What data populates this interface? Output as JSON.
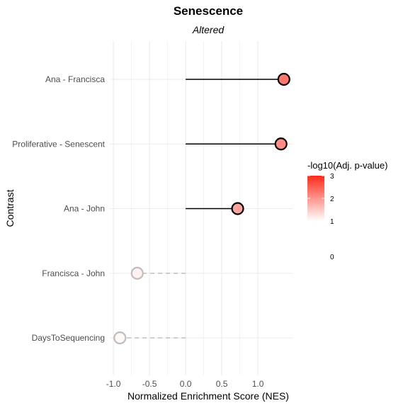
{
  "chart_data": {
    "type": "lollipop",
    "title": "Senescence",
    "subtitle": "Altered",
    "xlabel": "Normalized Enrichment Score (NES)",
    "ylabel": "Contrast",
    "xlim": [
      -1.05,
      1.48
    ],
    "x_ticks": [
      -1.0,
      -0.5,
      0.0,
      0.5,
      1.0
    ],
    "x_tick_labels": [
      "-1.0",
      "-0.5",
      "0.0",
      "0.5",
      "1.0"
    ],
    "grid": true,
    "categories": [
      "Ana - Francisca",
      "Proliferative - Senescent",
      "Ana - John",
      "Francisca - John",
      "DaysToSequencing"
    ],
    "points": [
      {
        "contrast": "Ana - Francisca",
        "nes": 1.36,
        "neg_log10_adj_p": 1.9,
        "significant": true
      },
      {
        "contrast": "Proliferative - Senescent",
        "nes": 1.32,
        "neg_log10_adj_p": 1.6,
        "significant": true
      },
      {
        "contrast": "Ana - John",
        "nes": 0.72,
        "neg_log10_adj_p": 1.3,
        "significant": true
      },
      {
        "contrast": "Francisca - John",
        "nes": -0.67,
        "neg_log10_adj_p": 0.2,
        "significant": false
      },
      {
        "contrast": "DaysToSequencing",
        "nes": -0.91,
        "neg_log10_adj_p": 0.1,
        "significant": false
      }
    ],
    "legend": {
      "title": "-log10(Adj. p-value)",
      "placement": "right",
      "ticks": [
        "3",
        "2",
        "1",
        "0"
      ],
      "color_high": "#ff2a1a",
      "color_low": "#ffffff"
    },
    "colors": {
      "significant_stem": "#000000",
      "nonsignificant_stem": "#bfbfbf",
      "significant_point_stroke": "#000000",
      "nonsignificant_point_stroke": "#bdbdbd",
      "grid": "#ebebeb"
    }
  }
}
